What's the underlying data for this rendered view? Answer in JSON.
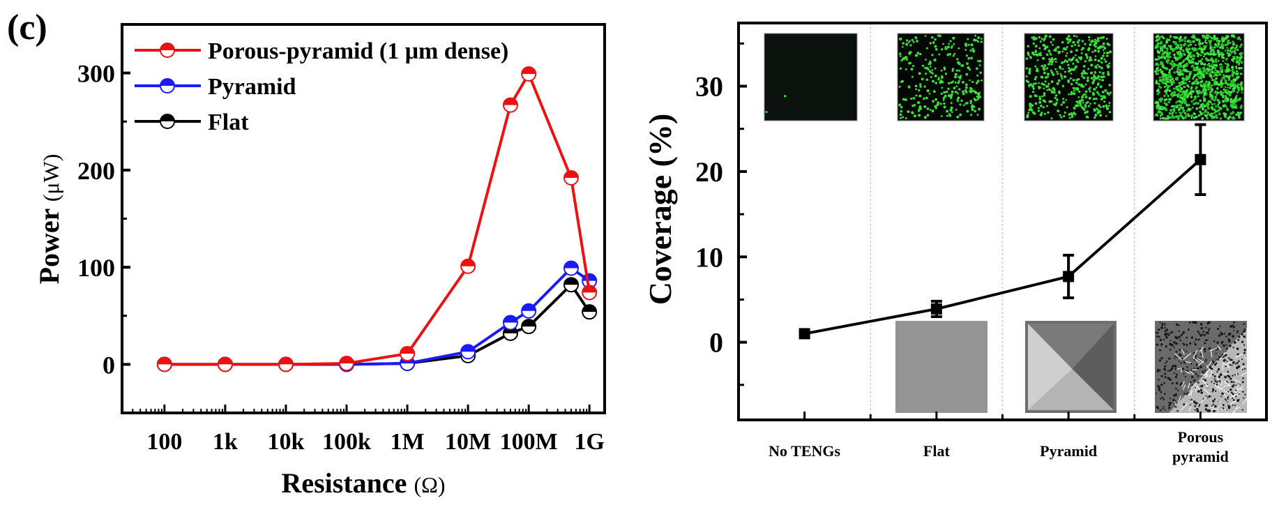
{
  "panel_label": "(c)",
  "chart_data": [
    {
      "type": "line",
      "title": "",
      "xlabel": "Resistance",
      "xlabel_unit": "(Ω)",
      "ylabel": "Power",
      "ylabel_unit": "(μW)",
      "xscale": "log",
      "xlim": [
        20,
        1780000000
      ],
      "ylim": [
        -50,
        350
      ],
      "x_tick_values": [
        100,
        1000,
        10000,
        100000,
        1000000,
        10000000,
        100000000,
        1000000000
      ],
      "x_tick_labels": [
        "100",
        "1k",
        "10k",
        "100k",
        "1M",
        "10M",
        "100M",
        "1G"
      ],
      "y_tick_values": [
        0,
        100,
        200,
        300
      ],
      "y_tick_labels": [
        "0",
        "100",
        "200",
        "300"
      ],
      "y_minor_ticks": [
        -50,
        50,
        150,
        250
      ],
      "grid": false,
      "legend_position": "top-left",
      "x": [
        100,
        1000,
        10000,
        100000,
        1000000,
        10000000,
        50000000,
        100000000,
        500000000,
        1000000000
      ],
      "series": [
        {
          "name": "Porous-pyramid (1 μm dense)",
          "color": "#ee1111",
          "values": [
            0,
            0,
            0,
            1,
            11,
            101,
            267,
            299,
            192,
            74
          ]
        },
        {
          "name": "Pyramid",
          "color": "#1a1aff",
          "values": [
            0,
            0,
            0,
            0,
            1,
            13,
            43,
            55,
            99,
            86
          ]
        },
        {
          "name": "Flat",
          "color": "#000000",
          "values": [
            0,
            0,
            0,
            0,
            1,
            9,
            32,
            39,
            82,
            54
          ]
        }
      ]
    },
    {
      "type": "line",
      "title": "",
      "xlabel": "",
      "ylabel": "Coverage (%)",
      "categories": [
        "No TENGs",
        "Flat",
        "Pyramid",
        "Porous\npyramid"
      ],
      "xlim": [
        0.5,
        4.5
      ],
      "ylim": [
        -9.1,
        37.4
      ],
      "y_tick_values": [
        0,
        10,
        20,
        30
      ],
      "y_tick_labels": [
        "0",
        "10",
        "20",
        "30"
      ],
      "y_minor_ticks": [
        -5,
        5,
        15,
        25,
        35
      ],
      "grid": "vertical dashed separators between categories",
      "series": [
        {
          "name": "Coverage",
          "color": "#000000",
          "values": [
            1.0,
            3.9,
            7.7,
            21.4
          ],
          "error": [
            0.0,
            0.9,
            2.5,
            4.1
          ]
        }
      ],
      "insets": {
        "top_row": [
          "fluorescence image: No TENGs",
          "fluorescence image: Flat",
          "fluorescence image: Pyramid",
          "fluorescence image: Porous pyramid"
        ],
        "bottom_row": [
          "SEM image: Flat",
          "SEM image: Pyramid",
          "SEM image: Porous pyramid"
        ],
        "fluorescence_density": [
          0.002,
          0.25,
          0.4,
          1.0
        ]
      }
    }
  ]
}
